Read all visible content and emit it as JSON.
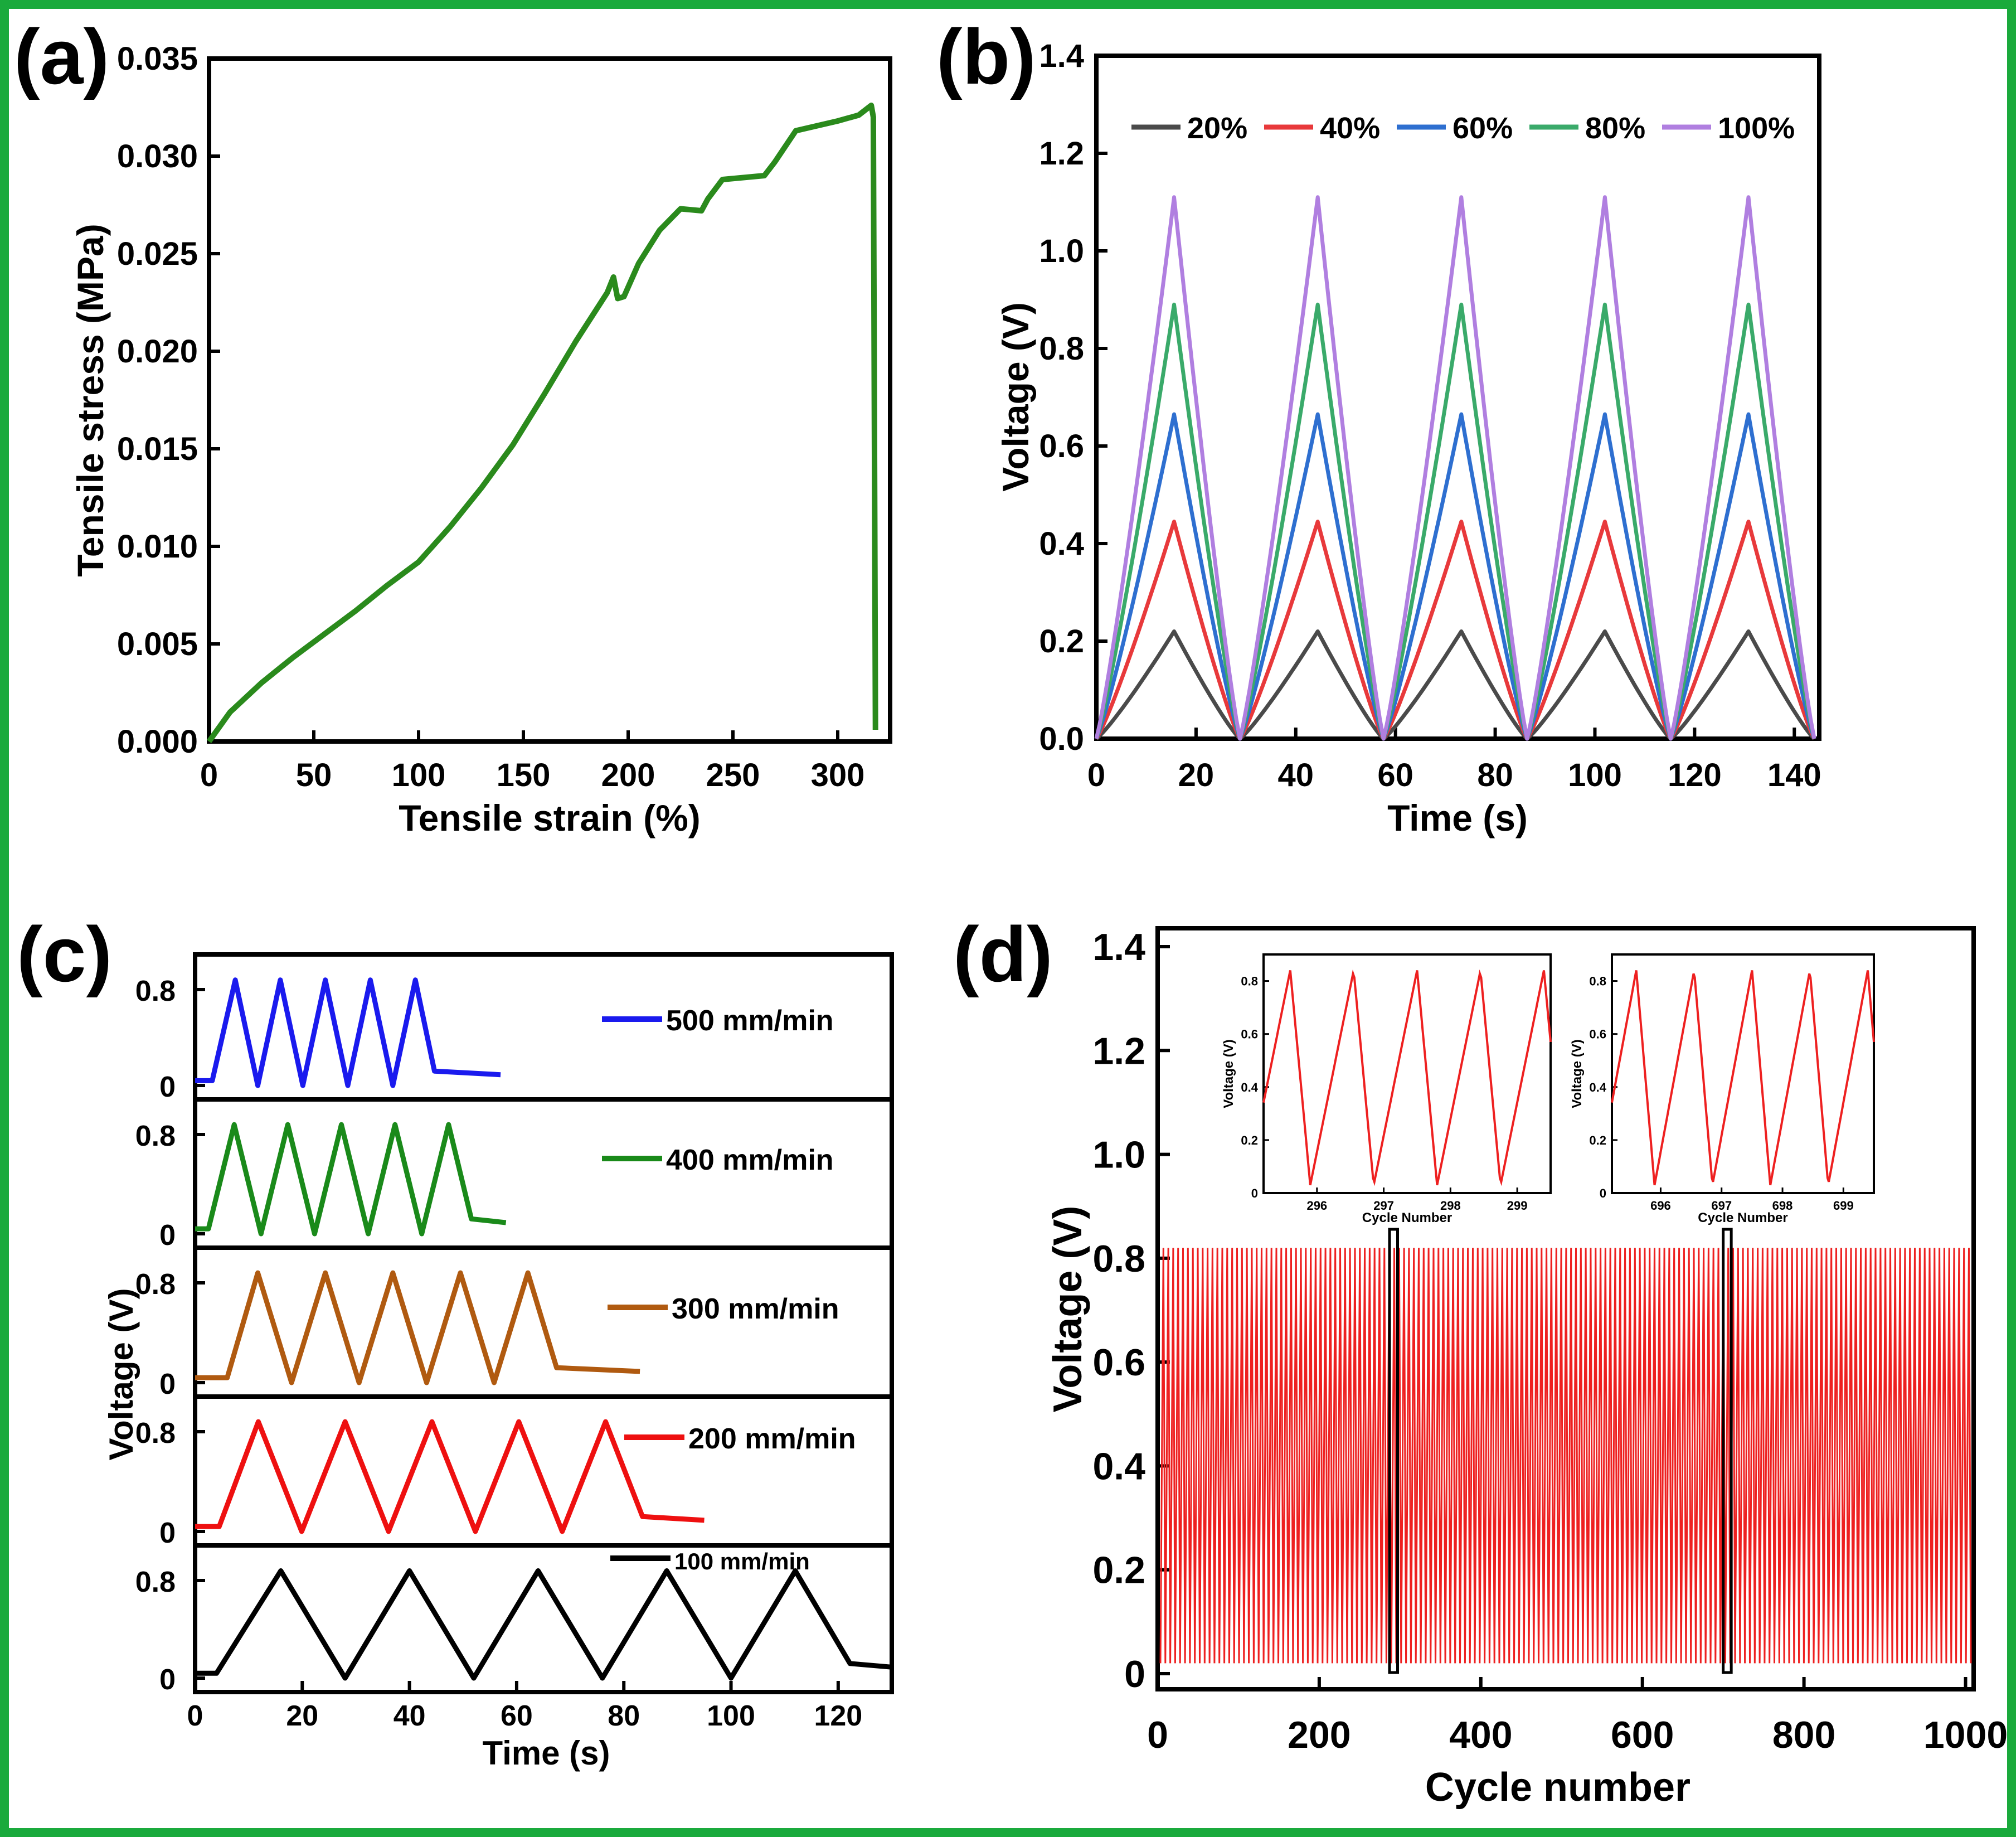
{
  "colors": {
    "border": "#1aaa3c",
    "black": "#000000"
  },
  "panel_labels": [
    "(a)",
    "(b)",
    "(c)",
    "(d)"
  ],
  "chart_data": [
    {
      "id": "a",
      "type": "line",
      "xlabel": "Tensile strain (%)",
      "ylabel": "Tensile stress (MPa)",
      "xlim": [
        0,
        325
      ],
      "ylim": [
        0,
        0.035
      ],
      "xticks": [
        0,
        50,
        100,
        150,
        200,
        250,
        300
      ],
      "yticks": [
        0,
        0.005,
        0.01,
        0.015,
        0.02,
        0.025,
        0.03,
        0.035
      ],
      "ytick_labels": [
        "0.000",
        "0.005",
        "0.010",
        "0.015",
        "0.020",
        "0.025",
        "0.030",
        "0.035"
      ],
      "color": "#2a8a1c",
      "x": [
        0,
        10,
        25,
        40,
        55,
        70,
        85,
        100,
        115,
        130,
        145,
        160,
        175,
        190,
        193,
        195,
        198,
        205,
        215,
        225,
        235,
        238,
        245,
        255,
        265,
        270,
        280,
        300,
        310,
        316,
        317,
        318,
        318
      ],
      "y": [
        0,
        0.0015,
        0.003,
        0.0043,
        0.0055,
        0.0067,
        0.008,
        0.0092,
        0.011,
        0.013,
        0.0152,
        0.0178,
        0.0205,
        0.023,
        0.0238,
        0.0227,
        0.0228,
        0.0245,
        0.0262,
        0.0273,
        0.0272,
        0.0278,
        0.0288,
        0.0289,
        0.029,
        0.0297,
        0.0313,
        0.0318,
        0.0321,
        0.0326,
        0.032,
        0.0006,
        0.0006
      ]
    },
    {
      "id": "b",
      "type": "line",
      "xlabel": "Time (s)",
      "ylabel": "Voltage (V)",
      "xlim": [
        0,
        145
      ],
      "ylim": [
        0,
        1.4
      ],
      "xticks": [
        0,
        20,
        40,
        60,
        80,
        100,
        120,
        140
      ],
      "yticks": [
        0,
        0.2,
        0.4,
        0.6,
        0.8,
        1.0,
        1.2,
        1.4
      ],
      "ytick_labels": [
        "0.0",
        "0.2",
        "0.4",
        "0.6",
        "0.8",
        "1.0",
        "1.2",
        "1.4"
      ],
      "period": 28.8,
      "rise_time": 15.6,
      "cycles": 5,
      "series": [
        {
          "name": "20%",
          "peak": 0.22,
          "color": "#4a4a4a"
        },
        {
          "name": "40%",
          "peak": 0.445,
          "color": "#e8393b"
        },
        {
          "name": "60%",
          "peak": 0.665,
          "color": "#2e6fd0"
        },
        {
          "name": "80%",
          "peak": 0.89,
          "color": "#3aaa6a"
        },
        {
          "name": "100%",
          "peak": 1.11,
          "color": "#b07fe0"
        }
      ]
    },
    {
      "id": "c",
      "type": "line",
      "stacked": true,
      "xlabel": "Time (s)",
      "ylabel": "Voltage (V)",
      "xlim": [
        0,
        130
      ],
      "xticks": [
        0,
        20,
        40,
        60,
        80,
        100,
        120
      ],
      "ytick_labels": [
        "0",
        "0.8"
      ],
      "series": [
        {
          "name": "500 mm/min",
          "color": "#1a1aee",
          "start": 3.2,
          "first_peak": 7.5,
          "half": 4.2,
          "period": 8.4,
          "end": 57
        },
        {
          "name": "400 mm/min",
          "color": "#1a8a1a",
          "start": 2.5,
          "first_peak": 7.3,
          "half": 5.0,
          "period": 10.0,
          "end": 58
        },
        {
          "name": "300 mm/min",
          "color": "#b05a10",
          "start": 6.0,
          "first_peak": 11.7,
          "half": 6.3,
          "period": 12.6,
          "end": 83
        },
        {
          "name": "200 mm/min",
          "color": "#ee1010",
          "start": 4.5,
          "first_peak": 11.8,
          "half": 8.1,
          "period": 16.2,
          "end": 95
        },
        {
          "name": "100 mm/min",
          "color": "#000000",
          "start": 4.0,
          "first_peak": 16.0,
          "half": 12.0,
          "period": 24.0,
          "end": 130
        }
      ]
    },
    {
      "id": "d",
      "type": "line",
      "xlabel": "Cycle number",
      "ylabel": "Voltage (V)",
      "xlim": [
        0,
        1010
      ],
      "ylim": [
        -0.05,
        1.4
      ],
      "xticks": [
        0,
        200,
        400,
        600,
        800,
        1000
      ],
      "yticks": [
        0,
        0.2,
        0.4,
        0.6,
        0.8,
        1.0,
        1.2,
        1.4
      ],
      "ytick_labels": [
        "0",
        "0.2",
        "0.4",
        "0.6",
        "0.8",
        "1.0",
        "1.2",
        "1.4"
      ],
      "color": "#ee2020",
      "peak": 0.82,
      "min": 0.02,
      "highlight_boxes": [
        [
          287,
          297
        ],
        [
          700,
          710
        ]
      ],
      "insets": [
        {
          "xlabel": "Cycle Number",
          "ylabel": "Voltage (V)",
          "xticks": [
            296,
            297,
            298,
            299
          ],
          "yticks": [
            0,
            0.2,
            0.4,
            0.6,
            0.8
          ],
          "ytick_labels": [
            "0",
            "0.2",
            "0.4",
            "0.6",
            "0.8"
          ],
          "xlim": [
            295.2,
            299.5
          ],
          "first_peak": 295.6
        },
        {
          "xlabel": "Cycle Number",
          "ylabel": "Voltage (V)",
          "xticks": [
            696,
            697,
            698,
            699
          ],
          "yticks": [
            0,
            0.2,
            0.4,
            0.6,
            0.8
          ],
          "ytick_labels": [
            "0",
            "0.2",
            "0.4",
            "0.6",
            "0.8"
          ],
          "xlim": [
            695.2,
            699.5
          ],
          "first_peak": 695.6
        }
      ]
    }
  ]
}
